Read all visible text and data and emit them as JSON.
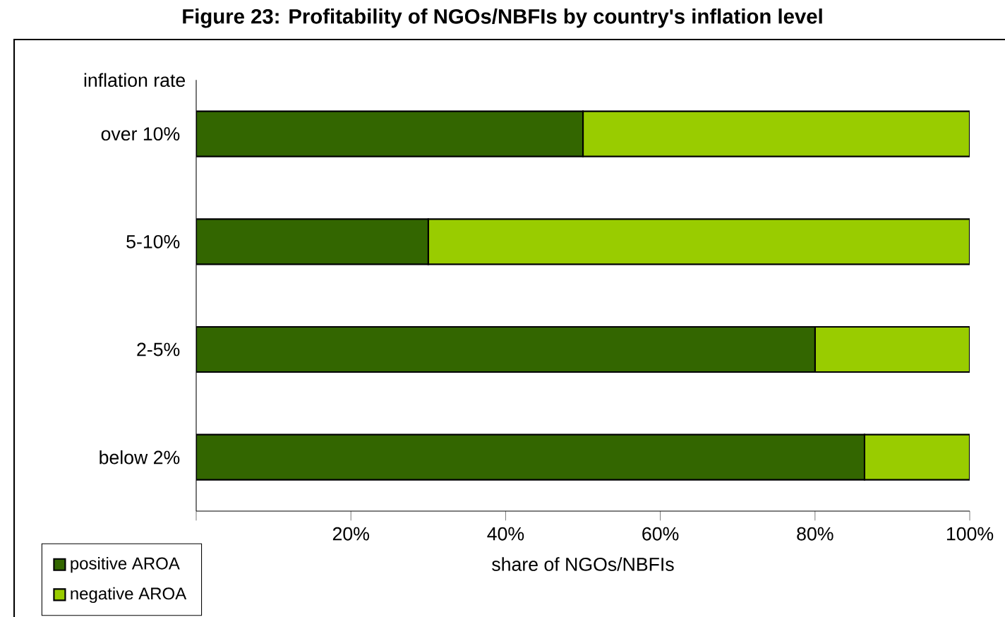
{
  "chart_data": {
    "type": "bar",
    "orientation": "horizontal",
    "stacked": true,
    "title": "Figure 23: Profitability of NGOs/NBFIs by country's inflation level",
    "ylabel": "inflation rate",
    "xlabel": "share of NGOs/NBFIs",
    "categories": [
      "over 10%",
      "5-10%",
      "2-5%",
      "below 2%"
    ],
    "series": [
      {
        "name": "positive AROA",
        "color": "#336600",
        "values": [
          50,
          30,
          80,
          86.4
        ]
      },
      {
        "name": "negative AROA",
        "color": "#99cc00",
        "values": [
          50,
          70,
          20,
          13.6
        ]
      }
    ],
    "xlim": [
      0,
      100
    ],
    "xticks": [
      {
        "value": 0,
        "label": null
      },
      {
        "value": 20,
        "label": "20%"
      },
      {
        "value": 40,
        "label": "40%"
      },
      {
        "value": 60,
        "label": "60%"
      },
      {
        "value": 80,
        "label": "80%"
      },
      {
        "value": 100,
        "label": "100%"
      }
    ],
    "grid": false,
    "legend": "bottom left"
  }
}
